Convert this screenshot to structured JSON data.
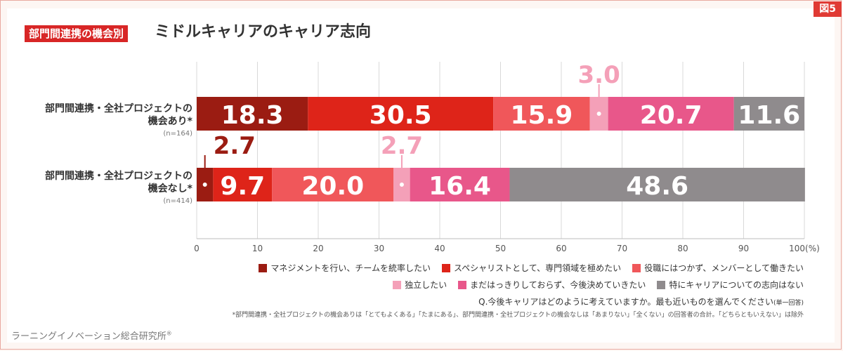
{
  "figure_label": "図5",
  "title_tag": "部門間連携の機会別",
  "title": "ミドルキャリアのキャリア志向",
  "rows": [
    {
      "label_line1": "部門間連携・全社プロジェクトの",
      "label_line2": "機会あり*",
      "n": "(n=164)"
    },
    {
      "label_line1": "部門間連携・全社プロジェクトの",
      "label_line2": "機会なし*",
      "n": "(n=414)"
    }
  ],
  "question": "Q.今後キャリアはどのように考えていますか。最も近いものを選んでください",
  "question_note": "(単一回答)",
  "footnote": "*部門間連携・全社プロジェクトの機会ありは「とてもよくある」「たまにある」、部門間連携・全社プロジェクトの機会なしは「あまりない」「全くない」の回答者の合計。「どちらともいえない」は除外",
  "organization": "ラーニングイノベーション総合研究所",
  "organization_mark": "®",
  "chart_data": {
    "type": "bar",
    "orientation": "horizontal",
    "stacked": true,
    "categories": [
      "部門間連携・全社プロジェクトの機会あり*",
      "部門間連携・全社プロジェクトの機会なし*"
    ],
    "series": [
      {
        "name": "マネジメントを行い、チームを統率したい",
        "color": "#9b1c12",
        "values": [
          18.3,
          2.7
        ]
      },
      {
        "name": "スペシャリストとして、専門領域を極めたい",
        "color": "#de2419",
        "values": [
          30.5,
          9.7
        ]
      },
      {
        "name": "役職にはつかず、メンバーとして働きたい",
        "color": "#f0575a",
        "values": [
          15.9,
          20.0
        ]
      },
      {
        "name": "独立したい",
        "color": "#f4a0b8",
        "values": [
          3.0,
          2.7
        ]
      },
      {
        "name": "まだはっきりしておらず、今後決めていきたい",
        "color": "#e8578a",
        "values": [
          20.7,
          16.4
        ]
      },
      {
        "name": "特にキャリアについての志向はない",
        "color": "#8f8b8d",
        "values": [
          11.6,
          48.6
        ]
      }
    ],
    "value_labels": [
      [
        "18.3",
        "30.5",
        "15.9",
        "3.0",
        "20.7",
        "11.6"
      ],
      [
        "2.7",
        "9.7",
        "20.0",
        "2.7",
        "16.4",
        "48.6"
      ]
    ],
    "xlim": [
      0,
      100
    ],
    "xticks": [
      "0",
      "10",
      "20",
      "30",
      "40",
      "50",
      "60",
      "70",
      "80",
      "90",
      "100"
    ],
    "x_unit": "(%)",
    "grid": true,
    "legend_position": "bottom-right"
  }
}
